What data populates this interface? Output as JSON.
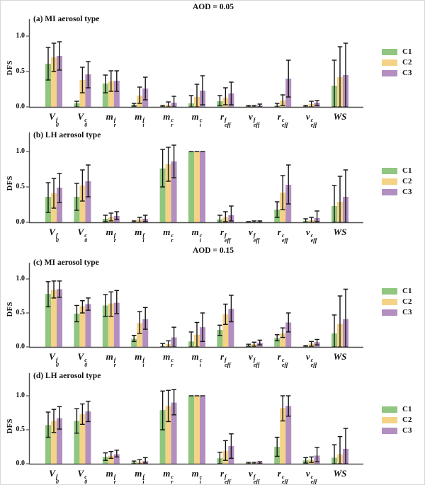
{
  "figure": {
    "ylabel": "DFS",
    "yticks": [
      {
        "label": "0.0",
        "value": 0.0
      },
      {
        "label": "0.5",
        "value": 0.5
      },
      {
        "label": "1.0",
        "value": 1.0
      }
    ],
    "legend": {
      "position": "right",
      "entries": [
        {
          "label": "C1",
          "color": "#90c67f"
        },
        {
          "label": "C2",
          "color": "#f4d387"
        },
        {
          "label": "C3",
          "color": "#b28fc0"
        }
      ]
    },
    "categories_display": [
      {
        "base": "V",
        "sup": "f",
        "sub": "0"
      },
      {
        "base": "V",
        "sup": "c",
        "sub": "0"
      },
      {
        "base": "m",
        "sup": "f",
        "sub": "r"
      },
      {
        "base": "m",
        "sup": "f",
        "sub": "i"
      },
      {
        "base": "m",
        "sup": "c",
        "sub": "r"
      },
      {
        "base": "m",
        "sup": "c",
        "sub": "i"
      },
      {
        "base": "r",
        "sup": "f",
        "sub": "eff"
      },
      {
        "base": "v",
        "sup": "f",
        "sub": "eff"
      },
      {
        "base": "r",
        "sup": "c",
        "sub": "eff"
      },
      {
        "base": "v",
        "sup": "c",
        "sub": "eff"
      },
      {
        "base": "WS"
      }
    ],
    "axis_color": "#4d4d4d",
    "errorbar_color": "#141414"
  },
  "chart_data": [
    {
      "type": "bar",
      "group_title": "AOD = 0.05",
      "panel_label": "(a) MI aerosol type",
      "ylabel": "DFS",
      "ylim": [
        0,
        1.15
      ],
      "categories": [
        "V0_f",
        "V0_c",
        "mr_f",
        "mi_f",
        "mr_c",
        "mi_c",
        "reff_f",
        "veff_f",
        "reff_c",
        "veff_c",
        "WS"
      ],
      "series": [
        {
          "name": "C1",
          "color": "#90c67f",
          "values": [
            0.61,
            0.05,
            0.33,
            0.03,
            0.01,
            0.05,
            0.08,
            0.01,
            0.02,
            0.01,
            0.3
          ],
          "err_lo": [
            0.38,
            0.0,
            0.2,
            0.01,
            0.0,
            0.0,
            0.02,
            0.0,
            0.0,
            0.0,
            0.0
          ],
          "err_hi": [
            0.84,
            0.08,
            0.45,
            0.05,
            0.02,
            0.16,
            0.16,
            0.02,
            0.05,
            0.02,
            0.66
          ]
        },
        {
          "name": "C2",
          "color": "#f4d387",
          "values": [
            0.7,
            0.38,
            0.36,
            0.16,
            0.03,
            0.14,
            0.13,
            0.01,
            0.09,
            0.04,
            0.42
          ],
          "err_lo": [
            0.5,
            0.2,
            0.22,
            0.05,
            0.0,
            0.0,
            0.03,
            0.0,
            0.02,
            0.0,
            0.0
          ],
          "err_hi": [
            0.9,
            0.56,
            0.51,
            0.28,
            0.07,
            0.32,
            0.27,
            0.02,
            0.17,
            0.08,
            0.85
          ]
        },
        {
          "name": "C3",
          "color": "#b28fc0",
          "values": [
            0.72,
            0.46,
            0.37,
            0.26,
            0.06,
            0.23,
            0.19,
            0.02,
            0.4,
            0.06,
            0.45
          ],
          "err_lo": [
            0.52,
            0.27,
            0.22,
            0.1,
            0.0,
            0.03,
            0.03,
            0.0,
            0.14,
            0.02,
            0.0
          ],
          "err_hi": [
            0.92,
            0.64,
            0.51,
            0.42,
            0.15,
            0.44,
            0.35,
            0.04,
            0.66,
            0.09,
            0.9
          ]
        }
      ]
    },
    {
      "type": "bar",
      "group_title": "",
      "panel_label": "(b) LH aerosol type",
      "ylabel": "DFS",
      "ylim": [
        0,
        1.15
      ],
      "categories": [
        "V0_f",
        "V0_c",
        "mr_f",
        "mi_f",
        "mr_c",
        "mi_c",
        "reff_f",
        "veff_f",
        "reff_c",
        "veff_c",
        "WS"
      ],
      "series": [
        {
          "name": "C1",
          "color": "#90c67f",
          "values": [
            0.36,
            0.36,
            0.05,
            0.01,
            0.76,
            1.0,
            0.04,
            0.01,
            0.18,
            0.02,
            0.23
          ],
          "err_lo": [
            0.14,
            0.17,
            0.01,
            0.0,
            0.5,
            1.0,
            0.0,
            0.0,
            0.07,
            0.0,
            0.0
          ],
          "err_hi": [
            0.56,
            0.55,
            0.1,
            0.02,
            1.03,
            1.0,
            0.1,
            0.01,
            0.29,
            0.05,
            0.52
          ]
        },
        {
          "name": "C2",
          "color": "#f4d387",
          "values": [
            0.41,
            0.52,
            0.07,
            0.04,
            0.82,
            1.0,
            0.07,
            0.01,
            0.42,
            0.03,
            0.29
          ],
          "err_lo": [
            0.2,
            0.3,
            0.02,
            0.0,
            0.58,
            1.0,
            0.01,
            0.0,
            0.18,
            0.0,
            0.0
          ],
          "err_hi": [
            0.62,
            0.74,
            0.13,
            0.07,
            1.06,
            1.0,
            0.15,
            0.02,
            0.66,
            0.07,
            0.65
          ]
        },
        {
          "name": "C3",
          "color": "#b28fc0",
          "values": [
            0.49,
            0.58,
            0.09,
            0.05,
            0.86,
            1.0,
            0.1,
            0.01,
            0.53,
            0.06,
            0.36
          ],
          "err_lo": [
            0.28,
            0.36,
            0.04,
            0.01,
            0.63,
            1.0,
            0.02,
            0.0,
            0.26,
            0.01,
            0.0
          ],
          "err_hi": [
            0.69,
            0.81,
            0.15,
            0.1,
            1.09,
            1.0,
            0.23,
            0.02,
            0.81,
            0.16,
            0.74
          ]
        }
      ]
    },
    {
      "type": "bar",
      "group_title": "AOD = 0.15",
      "panel_label": "(c) MI aerosol type",
      "ylabel": "DFS",
      "ylim": [
        0,
        1.15
      ],
      "categories": [
        "V0_f",
        "V0_c",
        "mr_f",
        "mi_f",
        "mr_c",
        "mi_c",
        "reff_f",
        "veff_f",
        "reff_c",
        "veff_c",
        "WS"
      ],
      "series": [
        {
          "name": "C1",
          "color": "#90c67f",
          "values": [
            0.78,
            0.49,
            0.61,
            0.12,
            0.01,
            0.08,
            0.25,
            0.02,
            0.13,
            0.01,
            0.2
          ],
          "err_lo": [
            0.59,
            0.37,
            0.45,
            0.08,
            0.0,
            0.0,
            0.17,
            0.01,
            0.09,
            0.0,
            0.0
          ],
          "err_hi": [
            0.96,
            0.61,
            0.77,
            0.17,
            0.05,
            0.22,
            0.32,
            0.04,
            0.18,
            0.02,
            0.47
          ]
        },
        {
          "name": "C2",
          "color": "#f4d387",
          "values": [
            0.84,
            0.6,
            0.64,
            0.35,
            0.04,
            0.18,
            0.48,
            0.04,
            0.2,
            0.05,
            0.34
          ],
          "err_lo": [
            0.72,
            0.5,
            0.45,
            0.2,
            0.0,
            0.0,
            0.33,
            0.01,
            0.14,
            0.01,
            0.0
          ],
          "err_hi": [
            0.97,
            0.68,
            0.81,
            0.52,
            0.09,
            0.36,
            0.63,
            0.07,
            0.28,
            0.08,
            0.75
          ]
        },
        {
          "name": "C3",
          "color": "#b28fc0",
          "values": [
            0.85,
            0.63,
            0.65,
            0.41,
            0.14,
            0.29,
            0.56,
            0.06,
            0.36,
            0.07,
            0.41
          ],
          "err_lo": [
            0.73,
            0.54,
            0.49,
            0.26,
            0.0,
            0.08,
            0.37,
            0.03,
            0.22,
            0.03,
            0.0
          ],
          "err_hi": [
            0.97,
            0.72,
            0.83,
            0.58,
            0.29,
            0.5,
            0.76,
            0.1,
            0.5,
            0.11,
            0.85
          ]
        }
      ]
    },
    {
      "type": "bar",
      "group_title": "",
      "panel_label": "(d) LH aerosol type",
      "ylabel": "DFS",
      "ylim": [
        0,
        1.15
      ],
      "categories": [
        "V0_f",
        "V0_c",
        "mr_f",
        "mi_f",
        "mr_c",
        "mi_c",
        "reff_f",
        "veff_f",
        "reff_c",
        "veff_c",
        "WS"
      ],
      "series": [
        {
          "name": "C1",
          "color": "#90c67f",
          "values": [
            0.57,
            0.63,
            0.1,
            0.02,
            0.79,
            1.0,
            0.08,
            0.01,
            0.25,
            0.05,
            0.09
          ],
          "err_lo": [
            0.39,
            0.45,
            0.05,
            0.0,
            0.5,
            1.0,
            0.0,
            0.0,
            0.11,
            0.01,
            0.0
          ],
          "err_hi": [
            0.76,
            0.81,
            0.16,
            0.04,
            1.07,
            1.0,
            0.17,
            0.02,
            0.39,
            0.09,
            0.28
          ]
        },
        {
          "name": "C2",
          "color": "#f4d387",
          "values": [
            0.63,
            0.73,
            0.12,
            0.03,
            0.85,
            1.0,
            0.19,
            0.01,
            0.82,
            0.06,
            0.14
          ],
          "err_lo": [
            0.46,
            0.58,
            0.08,
            0.0,
            0.62,
            1.0,
            0.05,
            0.0,
            0.63,
            0.02,
            0.0
          ],
          "err_hi": [
            0.8,
            0.88,
            0.18,
            0.06,
            1.08,
            1.0,
            0.34,
            0.02,
            1.0,
            0.1,
            0.4
          ]
        },
        {
          "name": "C3",
          "color": "#b28fc0",
          "values": [
            0.67,
            0.77,
            0.14,
            0.04,
            0.9,
            1.0,
            0.26,
            0.02,
            0.85,
            0.12,
            0.22
          ],
          "err_lo": [
            0.51,
            0.62,
            0.1,
            0.01,
            0.72,
            1.0,
            0.08,
            0.0,
            0.7,
            0.03,
            0.0
          ],
          "err_hi": [
            0.84,
            0.92,
            0.2,
            0.09,
            1.09,
            1.0,
            0.44,
            0.03,
            1.0,
            0.24,
            0.52
          ]
        }
      ]
    }
  ]
}
